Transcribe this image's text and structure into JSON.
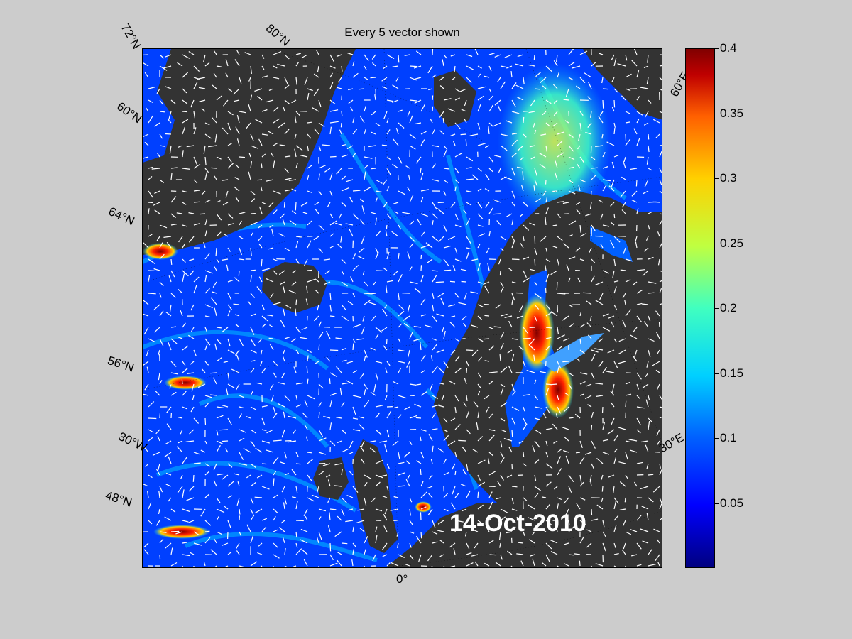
{
  "title": "Every 5 vector shown",
  "date_label": "14-Oct-2010",
  "lat_labels": [
    "72°N",
    "60°N",
    "64°N",
    "56°N",
    "48°N"
  ],
  "lon_labels": [
    "80°N",
    "60°E",
    "30°E",
    "30°W",
    "0°"
  ],
  "colorbar": {
    "min": 0,
    "max": 0.4,
    "tick_labels": [
      "0.4",
      "0.35",
      "0.3",
      "0.25",
      "0.2",
      "0.15",
      "0.1",
      "0.05"
    ],
    "colormap": "jet"
  },
  "colors": {
    "background": "#cccccc",
    "land": "#333333",
    "ocean_low": "#0000ff",
    "vector": "#ffffff"
  }
}
